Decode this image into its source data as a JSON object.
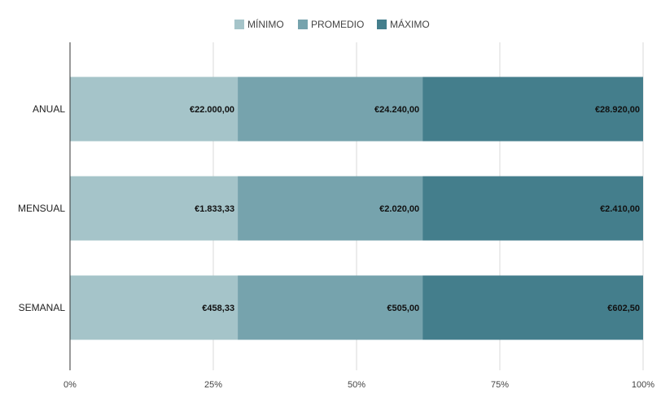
{
  "chart_data": {
    "type": "bar",
    "orientation": "horizontal",
    "stacked": true,
    "normalized": "percent",
    "title": "",
    "xlabel": "",
    "ylabel": "",
    "categories": [
      "ANUAL",
      "MENSUAL",
      "SEMANAL"
    ],
    "series": [
      {
        "name": "MÍNIMO",
        "color": "#a5c4c9",
        "values": [
          22000.0,
          1833.33,
          458.33
        ],
        "labels": [
          "€22.000,00",
          "€1.833,33",
          "€458,33"
        ]
      },
      {
        "name": "PROMEDIO",
        "color": "#76a3ad",
        "values": [
          24240.0,
          2020.0,
          505.0
        ],
        "labels": [
          "€24.240,00",
          "€2.020,00",
          "€505,00"
        ]
      },
      {
        "name": "MÁXIMO",
        "color": "#447e8c",
        "values": [
          28920.0,
          2410.0,
          602.5
        ],
        "labels": [
          "€28.920,00",
          "€2.410,00",
          "€602,50"
        ]
      }
    ],
    "xlim": [
      0,
      100
    ],
    "x_ticks": [
      0,
      25,
      50,
      75,
      100
    ],
    "x_tick_labels": [
      "0%",
      "25%",
      "50%",
      "75%",
      "100%"
    ],
    "grid": true,
    "legend": "top-center"
  }
}
